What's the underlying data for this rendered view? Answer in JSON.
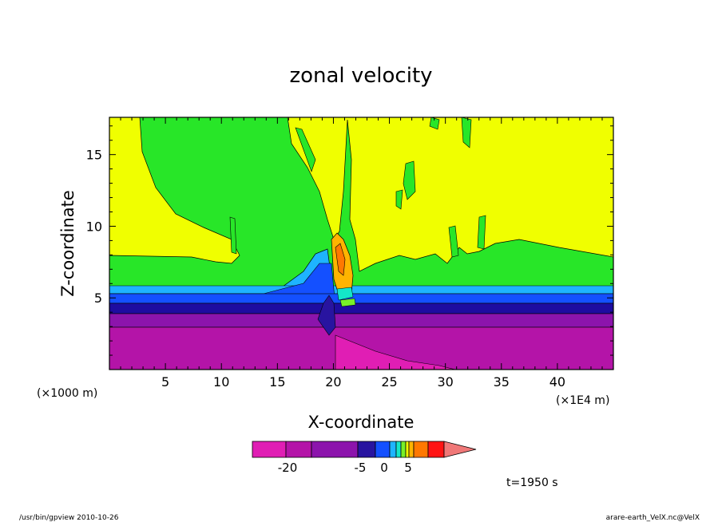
{
  "chart_data": {
    "type": "heatmap",
    "title": "zonal velocity",
    "xlabel": "X-coordinate",
    "ylabel": "Z-coordinate",
    "x_unit_left": "(×1000 m)",
    "x_unit_right": "(×1E4 m)",
    "xlim": [
      0,
      45
    ],
    "ylim": [
      0,
      17.6
    ],
    "x_ticks": [
      5,
      10,
      15,
      20,
      25,
      30,
      35,
      40
    ],
    "y_ticks": [
      5,
      10,
      15
    ],
    "x_tick_labels": [
      "5",
      "10",
      "15",
      "20",
      "25",
      "30",
      "35",
      "40"
    ],
    "y_tick_labels": [
      "5",
      "10",
      "15"
    ],
    "colorbar": {
      "labels": [
        "-20",
        "-5",
        "0",
        "5"
      ],
      "label_values": [
        -20,
        -5,
        0,
        5
      ],
      "colors": [
        "#e01eb4",
        "#b414a8",
        "#8c14ac",
        "#2814a0",
        "#1450ff",
        "#1eb4ff",
        "#14e6c8",
        "#78f028",
        "#f0ff00",
        "#ffb400",
        "#ff7800",
        "#ff1414",
        "#f07878"
      ]
    },
    "time_label": "t=1950 s",
    "footer_left": "/usr/bin/gpview  2010-10-26",
    "footer_right": "arare-earth_VelX.nc@VelX",
    "layers": [
      {
        "name": "magenta",
        "color": "#e01eb4",
        "z_top": 3.0
      },
      {
        "name": "purple",
        "color": "#8c14ac",
        "z_top": 4.2
      },
      {
        "name": "navy",
        "color": "#1e0ca0",
        "z_top": 4.8
      },
      {
        "name": "blue",
        "color": "#1450ff",
        "z_top": 5.4
      },
      {
        "name": "cyan",
        "color": "#1eb4ff",
        "z_top": 5.8
      },
      {
        "name": "green",
        "color": "#28e628",
        "z_top": 8.2
      },
      {
        "name": "yellow",
        "color": "#f0ff00",
        "z_top": 17.6
      }
    ]
  }
}
